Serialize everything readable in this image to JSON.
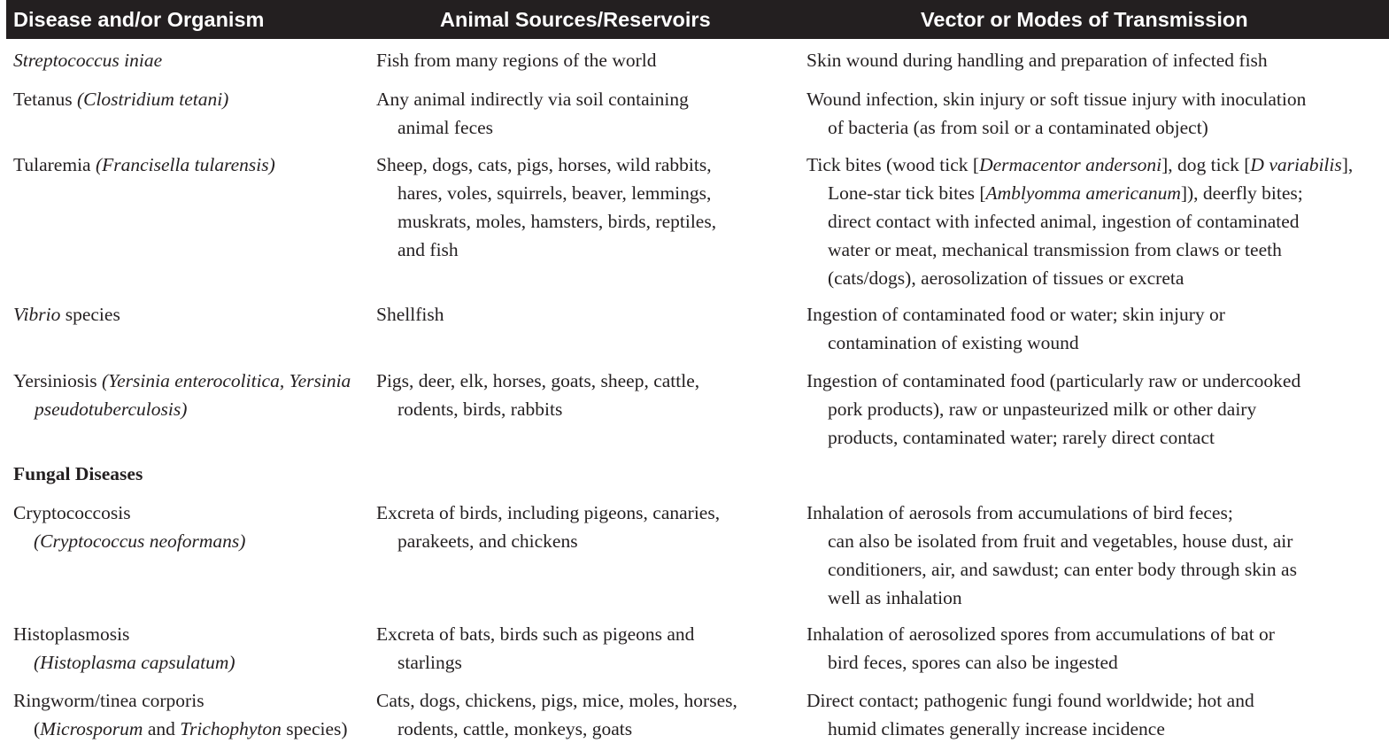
{
  "header": {
    "col1": "Disease and/or Organism",
    "col2": "Animal Sources/Reservoirs",
    "col3": "Vector or Modes of Transmission"
  },
  "rows": [
    {
      "disease": [
        "Streptococcus iniae"
      ],
      "sources": [
        "Fish from many regions of the world"
      ],
      "transmission": [
        "Skin wound during handling and preparation of infected fish"
      ]
    },
    {
      "disease": [
        "Tetanus ",
        "(Clostridium tetani)"
      ],
      "sources": [
        "Any animal indirectly via soil containing",
        "animal feces"
      ],
      "transmission": [
        "Wound infection, skin injury or soft tissue injury with inoculation",
        "of bacteria (as from soil or a contaminated object)"
      ]
    },
    {
      "disease": [
        "Tularemia ",
        "(Francisella tularensis)"
      ],
      "sources": [
        "Sheep, dogs, cats, pigs, horses, wild rabbits,",
        "hares, voles, squirrels, beaver, lemmings,",
        "muskrats, moles, hamsters, birds, reptiles,",
        "and fish"
      ],
      "transmission": [
        [
          "Tick bites (wood tick [",
          "Dermacentor andersoni",
          "], dog tick [",
          "D variabilis",
          "],"
        ],
        [
          "Lone-star tick bites [",
          "Amblyomma americanum",
          "]), deerfly bites;"
        ],
        "direct contact with infected animal, ingestion of contaminated",
        "water or meat, mechanical transmission from claws or teeth",
        "(cats/dogs), aerosolization of tissues or excreta"
      ]
    },
    {
      "disease": [
        "Vibrio",
        " species"
      ],
      "sources": [
        "Shellfish"
      ],
      "transmission": [
        "Ingestion of contaminated food or water; skin injury or",
        "contamination of existing wound"
      ]
    },
    {
      "disease": [
        "Yersiniosis ",
        "(Yersinia enterocolitica, Yersinia",
        "pseudotuberculosis)"
      ],
      "sources": [
        "Pigs, deer, elk, horses, goats, sheep, cattle,",
        "rodents, birds, rabbits"
      ],
      "transmission": [
        "Ingestion of contaminated food (particularly raw or undercooked",
        "pork products), raw or unpasteurized milk or other dairy",
        "products, contaminated water; rarely direct contact"
      ]
    }
  ],
  "section_title": "Fungal Diseases",
  "fungal_rows": [
    {
      "disease": [
        "Cryptococcosis",
        "(Cryptococcus neoformans)"
      ],
      "sources": [
        "Excreta of birds, including pigeons, canaries,",
        "parakeets, and chickens"
      ],
      "transmission": [
        "Inhalation of aerosols from accumulations of bird feces;",
        "can also be isolated from fruit and vegetables, house dust, air",
        "conditioners, air, and sawdust; can enter body through skin as",
        "well as inhalation"
      ]
    },
    {
      "disease": [
        "Histoplasmosis",
        "(Histoplasma capsulatum)"
      ],
      "sources": [
        "Excreta of bats, birds such as pigeons and",
        "starlings"
      ],
      "transmission": [
        "Inhalation of aerosolized spores from accumulations of bat or",
        "bird feces, spores can also be ingested"
      ]
    },
    {
      "disease": [
        "Ringworm/tinea corporis",
        "(",
        "Microsporum",
        " and ",
        "Trichophyton",
        " species)"
      ],
      "sources": [
        "Cats, dogs, chickens, pigs, mice, moles, horses,",
        "rodents, cattle, monkeys, goats"
      ],
      "transmission": [
        "Direct contact; pathogenic fungi found worldwide; hot and",
        "humid climates generally increase incidence"
      ]
    }
  ]
}
